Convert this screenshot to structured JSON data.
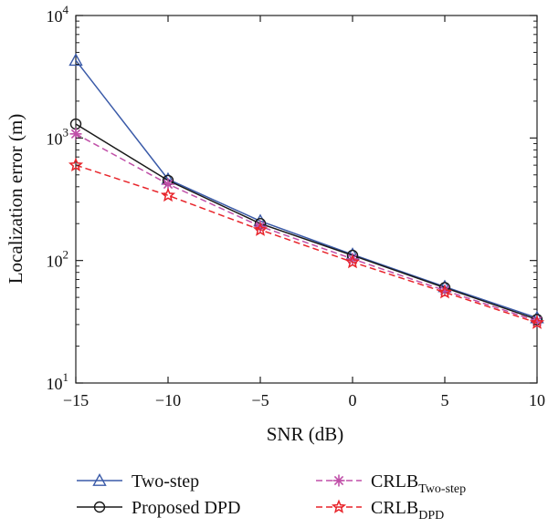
{
  "chart_data": {
    "type": "line",
    "xlabel": "SNR (dB)",
    "ylabel": "Localization error (m)",
    "x": [
      -15,
      -10,
      -5,
      0,
      5,
      10
    ],
    "xlim": [
      -15,
      10
    ],
    "ylim": [
      10,
      10000
    ],
    "yscale": "log",
    "xticks": [
      "−15",
      "−10",
      "−5",
      "0",
      "5",
      "10"
    ],
    "yticks": [
      {
        "value": 10,
        "base": "10",
        "exp": "1"
      },
      {
        "value": 100,
        "base": "10",
        "exp": "2"
      },
      {
        "value": 1000,
        "base": "10",
        "exp": "3"
      },
      {
        "value": 10000,
        "base": "10",
        "exp": "4"
      }
    ],
    "grid": false,
    "legend_position": "bottom",
    "series": [
      {
        "name": "Two-step",
        "name_main": "Two-step",
        "name_sub": "",
        "color": "#3a5aa8",
        "dash": "solid",
        "marker": "triangle",
        "values": [
          4300,
          460,
          210,
          112,
          61,
          34
        ]
      },
      {
        "name": "Proposed DPD",
        "name_main": "Proposed DPD",
        "name_sub": "",
        "color": "#1a1a1a",
        "dash": "solid",
        "marker": "circle",
        "values": [
          1300,
          450,
          200,
          110,
          60,
          33
        ]
      },
      {
        "name": "CRLB Two-step",
        "name_main": "CRLB",
        "name_sub": "Two-step",
        "color": "#c04fa8",
        "dash": "dashed",
        "marker": "asterisk",
        "values": [
          1080,
          420,
          190,
          103,
          57,
          32
        ]
      },
      {
        "name": "CRLB DPD",
        "name_main": "CRLB",
        "name_sub": "DPD",
        "color": "#e8242a",
        "dash": "dashed",
        "marker": "star",
        "values": [
          600,
          340,
          178,
          97,
          55,
          31
        ]
      }
    ]
  }
}
